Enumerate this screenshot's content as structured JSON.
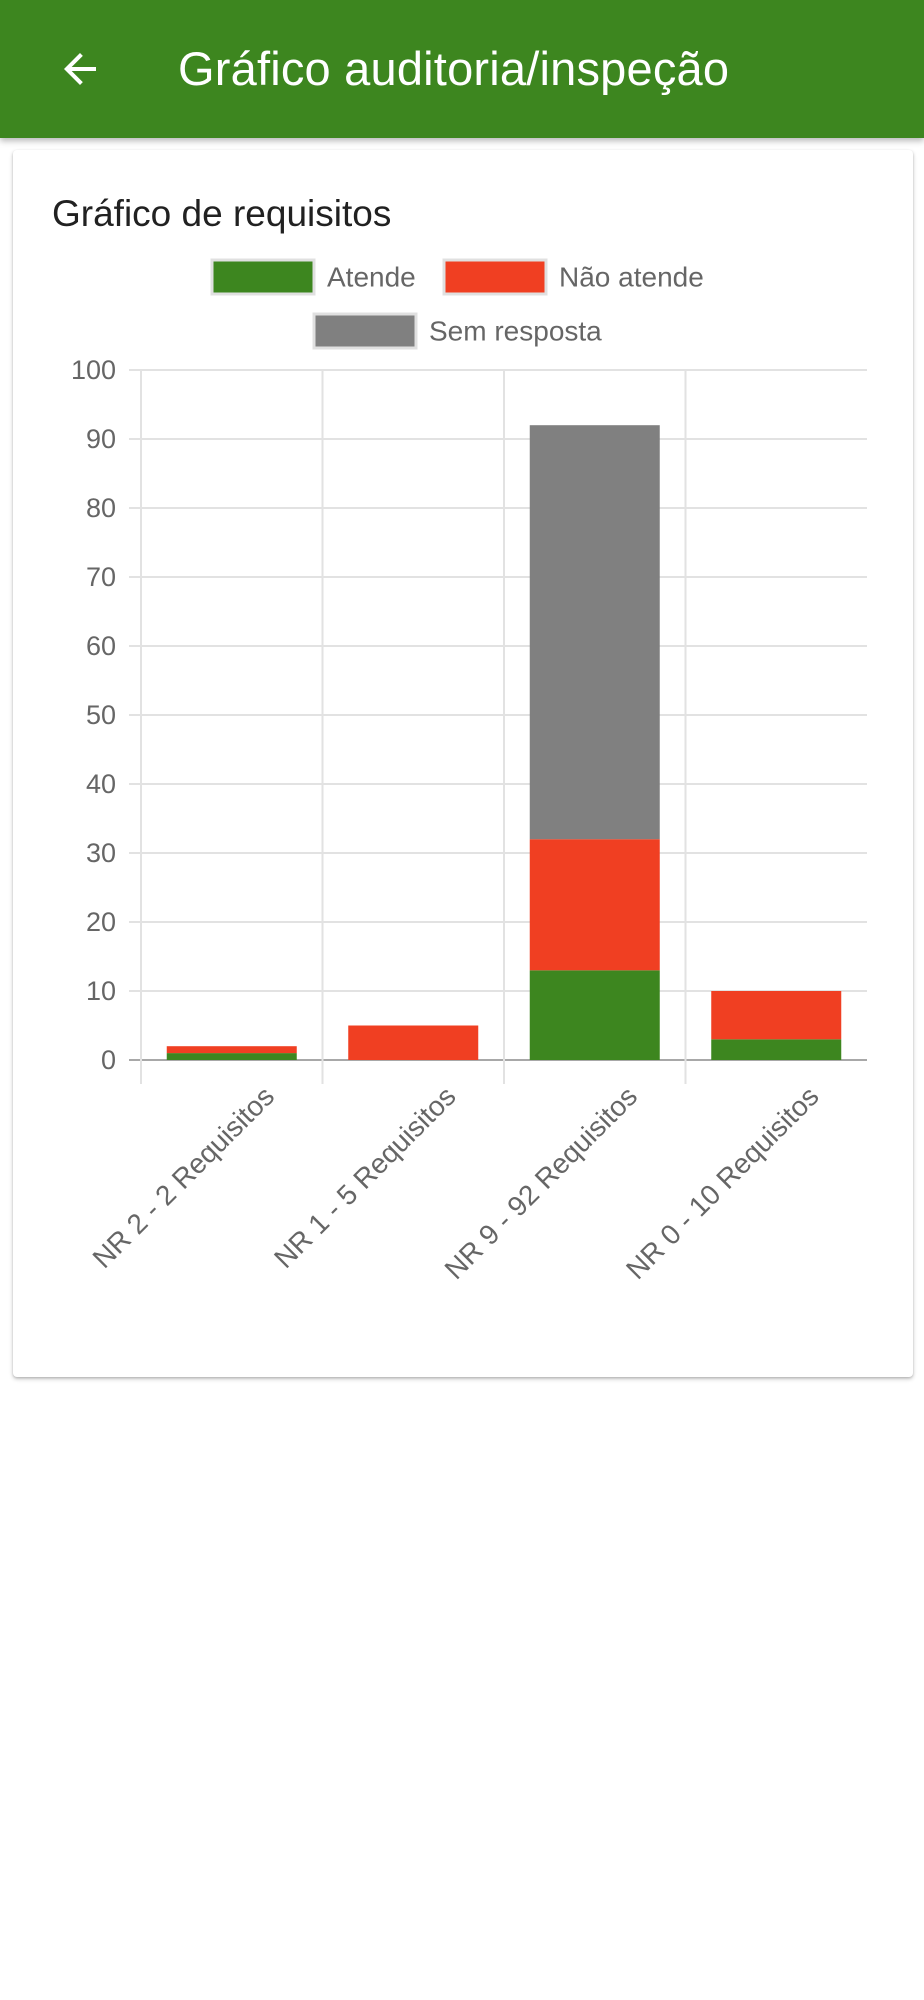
{
  "app_bar": {
    "title": "Gráfico auditoria/inspeção",
    "back_icon": "arrow-back-icon",
    "background": "#3d861f"
  },
  "card": {
    "title": "Gráfico de requisitos"
  },
  "chart_data": {
    "type": "bar",
    "stacked": true,
    "categories": [
      "NR 2 - 2 Requisitos",
      "NR 1 - 5 Requisitos",
      "NR 9 - 92 Requisitos",
      "NR 0 - 10 Requisitos"
    ],
    "series": [
      {
        "name": "Atende",
        "color": "#3d861f",
        "values": [
          1,
          0,
          13,
          3
        ]
      },
      {
        "name": "Não atende",
        "color": "#f03f22",
        "values": [
          1,
          5,
          19,
          7
        ]
      },
      {
        "name": "Sem resposta",
        "color": "#808080",
        "values": [
          0,
          0,
          60,
          0
        ]
      }
    ],
    "ylim": [
      0,
      100
    ],
    "yticks": [
      0,
      10,
      20,
      30,
      40,
      50,
      60,
      70,
      80,
      90,
      100
    ],
    "grid": true,
    "legend_position": "top"
  }
}
